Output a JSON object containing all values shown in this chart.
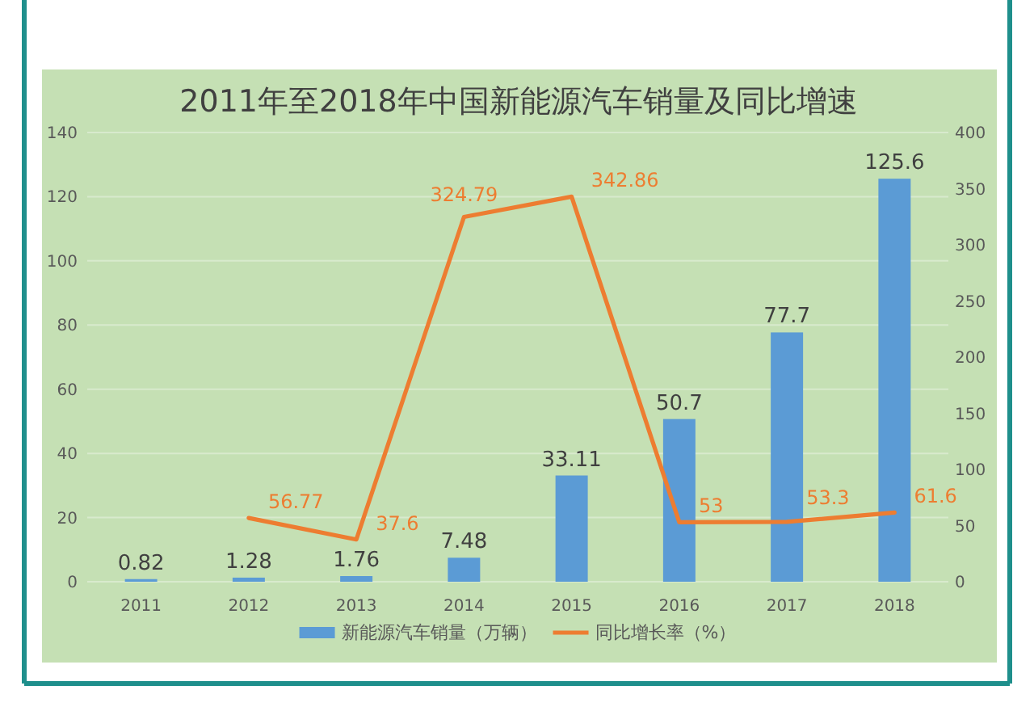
{
  "chart_data": {
    "type": "bar",
    "title": "2011年至2018年中国新能源汽车销量及同比增速",
    "categories": [
      "2011",
      "2012",
      "2013",
      "2014",
      "2015",
      "2016",
      "2017",
      "2018"
    ],
    "series": [
      {
        "name": "新能源汽车销量（万辆）",
        "color": "#5b9bd5",
        "values": [
          0.82,
          1.28,
          1.76,
          7.48,
          33.11,
          50.7,
          77.7,
          125.6
        ]
      },
      {
        "name": "同比增长率（%）",
        "type": "line",
        "axis": "y2",
        "color": "#ed7d31",
        "values": [
          null,
          56.77,
          37.6,
          324.79,
          342.86,
          53,
          53.3,
          61.6
        ]
      }
    ],
    "ylim": [
      0,
      140
    ],
    "yticks": [
      0,
      20,
      40,
      60,
      80,
      100,
      120,
      140
    ],
    "y2lim": [
      0,
      400
    ],
    "y2ticks": [
      0,
      50,
      100,
      150,
      200,
      250,
      300,
      350,
      400
    ],
    "grid": "y",
    "legend": "bottom",
    "data_labels": true
  }
}
